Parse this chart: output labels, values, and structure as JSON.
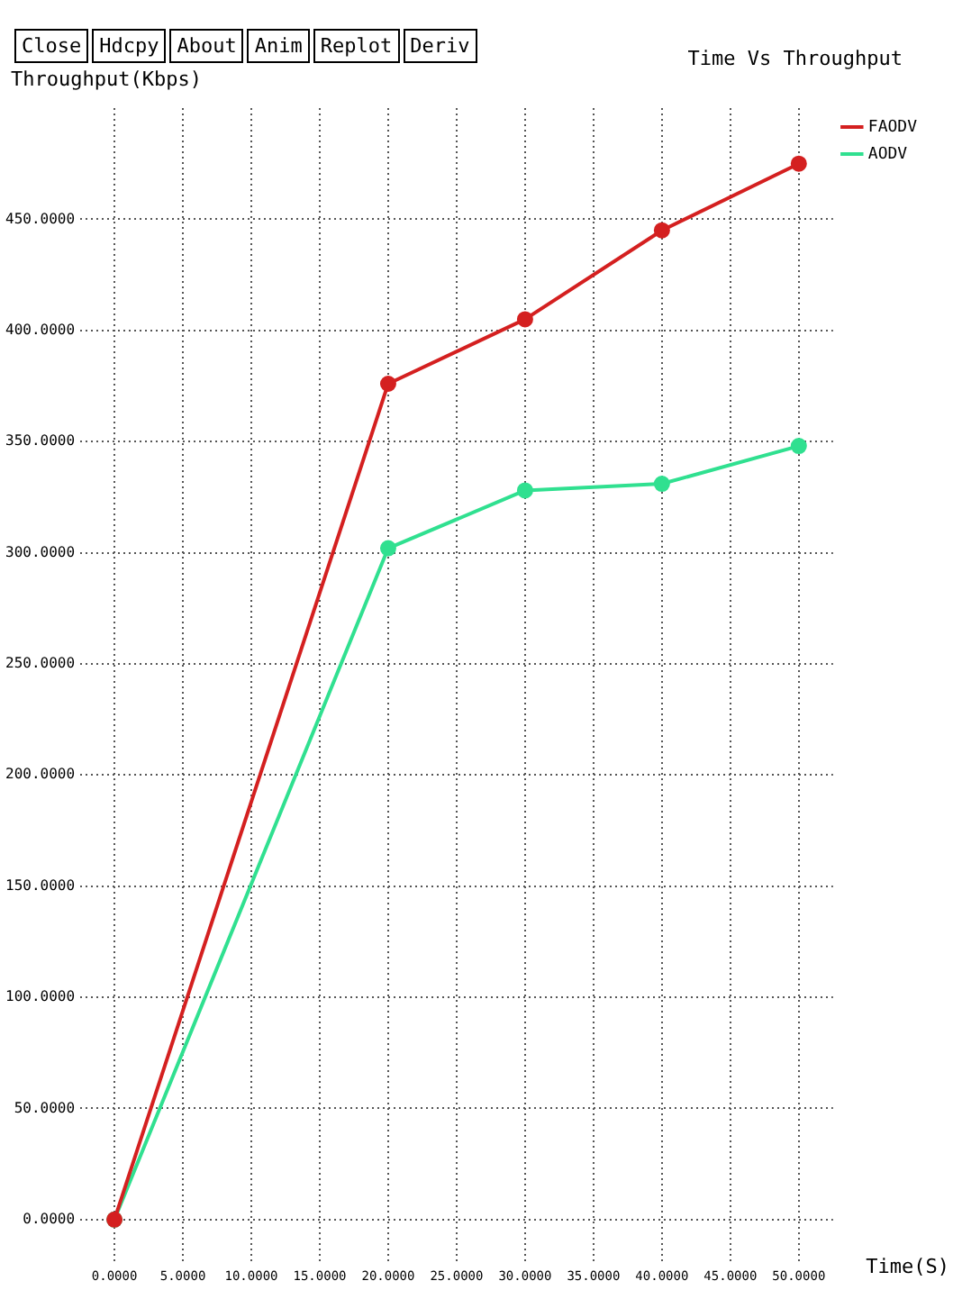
{
  "chart_data": {
    "type": "line",
    "title": "Time Vs Throughput",
    "ylabel": "Throughput(Kbps)",
    "xlabel": "Time(S)",
    "annotations": [
      "Close",
      "Hdcpy",
      "About",
      "Anim",
      "Replot",
      "Deriv"
    ],
    "x": [
      0,
      20,
      30,
      40,
      50
    ],
    "series": [
      {
        "name": "FAODV",
        "color": "#d42020",
        "values": [
          0,
          376,
          405,
          445,
          475
        ]
      },
      {
        "name": "AODV",
        "color": "#30e090",
        "values": [
          0,
          302,
          328,
          331,
          348
        ]
      }
    ],
    "xlim": [
      -2.5,
      52.5
    ],
    "ylim": [
      -20,
      500
    ],
    "xticks": [
      {
        "value": 0,
        "label": "0.0000"
      },
      {
        "value": 5,
        "label": "5.0000"
      },
      {
        "value": 10,
        "label": "10.0000"
      },
      {
        "value": 15,
        "label": "15.0000"
      },
      {
        "value": 20,
        "label": "20.0000"
      },
      {
        "value": 25,
        "label": "25.0000"
      },
      {
        "value": 30,
        "label": "30.0000"
      },
      {
        "value": 35,
        "label": "35.0000"
      },
      {
        "value": 40,
        "label": "40.0000"
      },
      {
        "value": 45,
        "label": "45.0000"
      },
      {
        "value": 50,
        "label": "50.0000"
      }
    ],
    "yticks": [
      {
        "value": 0,
        "label": "0.0000"
      },
      {
        "value": 50,
        "label": "50.0000"
      },
      {
        "value": 100,
        "label": "100.0000"
      },
      {
        "value": 150,
        "label": "150.0000"
      },
      {
        "value": 200,
        "label": "200.0000"
      },
      {
        "value": 250,
        "label": "250.0000"
      },
      {
        "value": 300,
        "label": "300.0000"
      },
      {
        "value": 350,
        "label": "350.0000"
      },
      {
        "value": 400,
        "label": "400.0000"
      },
      {
        "value": 450,
        "label": "450.0000"
      }
    ],
    "grid": true,
    "legend": "top right",
    "marker": "circle",
    "line_style": "solid"
  }
}
